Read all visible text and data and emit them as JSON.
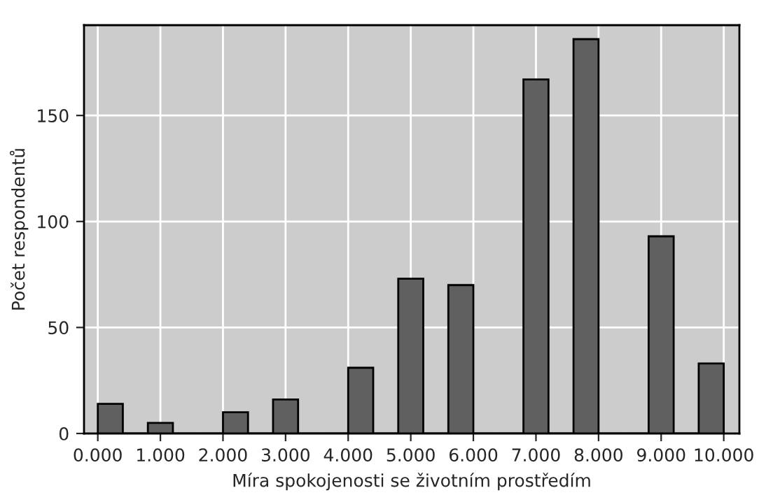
{
  "chart_data": {
    "type": "histogram",
    "xlabel": "Míra spokojenosti se životním prostředím",
    "ylabel": "Počet respondentů",
    "bins": [
      0,
      0.4,
      0.8,
      1.2,
      1.6,
      2.0,
      2.4,
      2.8,
      3.2,
      3.6,
      4.0,
      4.4,
      4.8,
      5.2,
      5.6,
      6.0,
      6.4,
      6.8,
      7.2,
      7.6,
      8.0,
      8.4,
      8.8,
      9.2,
      9.6,
      10.0
    ],
    "values": [
      14,
      0,
      5,
      0,
      0,
      10,
      0,
      16,
      0,
      0,
      31,
      0,
      73,
      0,
      70,
      0,
      0,
      167,
      0,
      186,
      0,
      0,
      93,
      0,
      33
    ],
    "color": "#606060",
    "xlim": [
      -0.22,
      10.25
    ],
    "xticks": [
      {
        "value": 0,
        "label": "0.000"
      },
      {
        "value": 1,
        "label": "1.000"
      },
      {
        "value": 2,
        "label": "2.000"
      },
      {
        "value": 3,
        "label": "3.000"
      },
      {
        "value": 4,
        "label": "4.000"
      },
      {
        "value": 5,
        "label": "5.000"
      },
      {
        "value": 6,
        "label": "6.000"
      },
      {
        "value": 7,
        "label": "7.000"
      },
      {
        "value": 8,
        "label": "8.000"
      },
      {
        "value": 9,
        "label": "9.000"
      },
      {
        "value": 10,
        "label": "10.000"
      }
    ],
    "ylim": [
      0,
      192.6
    ],
    "yticks": [
      0,
      50,
      100,
      150
    ],
    "grid": true
  }
}
